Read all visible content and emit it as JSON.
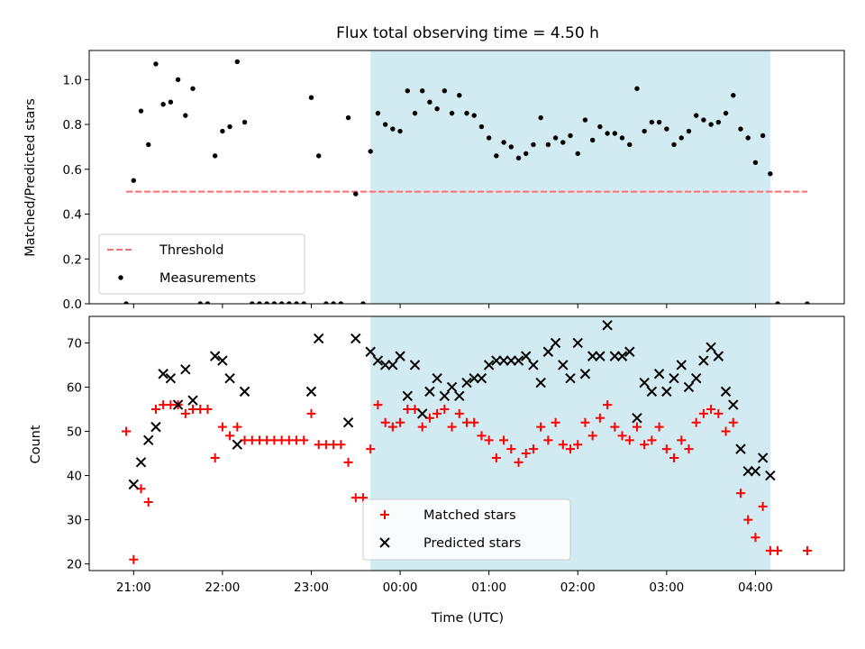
{
  "chart_data": [
    {
      "type": "scatter",
      "title": "Flux total observing time = 4.50 h",
      "xlabel": "",
      "ylabel": "Matched/Predicted stars",
      "xlim": [
        "20:30",
        "05:00"
      ],
      "ylim": [
        0,
        1.13
      ],
      "yticks": [
        "0.0",
        "0.2",
        "0.4",
        "0.6",
        "0.8",
        "1.0"
      ],
      "shaded_region": {
        "from": "23:40",
        "to": "04:10",
        "color": "#add8e6"
      },
      "grid": false,
      "legend_position": "lower-left",
      "series": [
        {
          "name": "Threshold",
          "kind": "dashed-line",
          "color": "#ff6e6e",
          "points": [
            [
              "20:55",
              0.5
            ],
            [
              "04:35",
              0.5
            ]
          ]
        },
        {
          "name": "Measurements",
          "kind": "dots",
          "color": "#000000",
          "points": [
            [
              "20:55",
              0.0
            ],
            [
              "21:00",
              0.55
            ],
            [
              "21:05",
              0.86
            ],
            [
              "21:10",
              0.71
            ],
            [
              "21:15",
              1.07
            ],
            [
              "21:20",
              0.89
            ],
            [
              "21:25",
              0.9
            ],
            [
              "21:30",
              1.0
            ],
            [
              "21:35",
              0.84
            ],
            [
              "21:40",
              0.96
            ],
            [
              "21:45",
              0.0
            ],
            [
              "21:50",
              0.0
            ],
            [
              "21:55",
              0.66
            ],
            [
              "22:00",
              0.77
            ],
            [
              "22:05",
              0.79
            ],
            [
              "22:10",
              1.08
            ],
            [
              "22:15",
              0.81
            ],
            [
              "22:20",
              0.0
            ],
            [
              "22:25",
              0.0
            ],
            [
              "22:30",
              0.0
            ],
            [
              "22:35",
              0.0
            ],
            [
              "22:40",
              0.0
            ],
            [
              "22:45",
              0.0
            ],
            [
              "22:50",
              0.0
            ],
            [
              "22:55",
              0.0
            ],
            [
              "23:00",
              0.92
            ],
            [
              "23:05",
              0.66
            ],
            [
              "23:10",
              0.0
            ],
            [
              "23:15",
              0.0
            ],
            [
              "23:20",
              0.0
            ],
            [
              "23:25",
              0.83
            ],
            [
              "23:30",
              0.49
            ],
            [
              "23:35",
              0.0
            ],
            [
              "23:40",
              0.68
            ],
            [
              "23:45",
              0.85
            ],
            [
              "23:50",
              0.8
            ],
            [
              "23:55",
              0.78
            ],
            [
              "00:00",
              0.77
            ],
            [
              "00:05",
              0.95
            ],
            [
              "00:10",
              0.85
            ],
            [
              "00:15",
              0.95
            ],
            [
              "00:20",
              0.9
            ],
            [
              "00:25",
              0.87
            ],
            [
              "00:30",
              0.95
            ],
            [
              "00:35",
              0.85
            ],
            [
              "00:40",
              0.93
            ],
            [
              "00:45",
              0.85
            ],
            [
              "00:50",
              0.84
            ],
            [
              "00:55",
              0.79
            ],
            [
              "01:00",
              0.74
            ],
            [
              "01:05",
              0.66
            ],
            [
              "01:10",
              0.72
            ],
            [
              "01:15",
              0.7
            ],
            [
              "01:20",
              0.65
            ],
            [
              "01:25",
              0.67
            ],
            [
              "01:30",
              0.71
            ],
            [
              "01:35",
              0.83
            ],
            [
              "01:40",
              0.71
            ],
            [
              "01:45",
              0.74
            ],
            [
              "01:50",
              0.72
            ],
            [
              "01:55",
              0.75
            ],
            [
              "02:00",
              0.67
            ],
            [
              "02:05",
              0.82
            ],
            [
              "02:10",
              0.73
            ],
            [
              "02:15",
              0.79
            ],
            [
              "02:20",
              0.76
            ],
            [
              "02:25",
              0.76
            ],
            [
              "02:30",
              0.74
            ],
            [
              "02:35",
              0.71
            ],
            [
              "02:40",
              0.96
            ],
            [
              "02:45",
              0.77
            ],
            [
              "02:50",
              0.81
            ],
            [
              "02:55",
              0.81
            ],
            [
              "03:00",
              0.78
            ],
            [
              "03:05",
              0.71
            ],
            [
              "03:10",
              0.74
            ],
            [
              "03:15",
              0.77
            ],
            [
              "03:20",
              0.84
            ],
            [
              "03:25",
              0.82
            ],
            [
              "03:30",
              0.8
            ],
            [
              "03:35",
              0.81
            ],
            [
              "03:40",
              0.85
            ],
            [
              "03:45",
              0.93
            ],
            [
              "03:50",
              0.78
            ],
            [
              "03:55",
              0.74
            ],
            [
              "04:00",
              0.63
            ],
            [
              "04:05",
              0.75
            ],
            [
              "04:10",
              0.58
            ],
            [
              "04:15",
              0.0
            ],
            [
              "04:35",
              0.0
            ]
          ]
        }
      ]
    },
    {
      "type": "scatter",
      "title": "",
      "xlabel": "Time (UTC)",
      "ylabel": "Count",
      "xlim": [
        "20:30",
        "05:00"
      ],
      "ylim": [
        18.5,
        76
      ],
      "xticks": [
        "21:00",
        "22:00",
        "23:00",
        "00:00",
        "01:00",
        "02:00",
        "03:00",
        "04:00"
      ],
      "yticks": [
        "20",
        "30",
        "40",
        "50",
        "60",
        "70"
      ],
      "shaded_region": {
        "from": "23:40",
        "to": "04:10",
        "color": "#add8e6"
      },
      "grid": false,
      "legend_position": "lower-center",
      "series": [
        {
          "name": "Matched stars",
          "kind": "plus",
          "color": "#ff0000",
          "points": [
            [
              "20:55",
              50
            ],
            [
              "21:00",
              21
            ],
            [
              "21:05",
              37
            ],
            [
              "21:10",
              34
            ],
            [
              "21:15",
              55
            ],
            [
              "21:20",
              56
            ],
            [
              "21:25",
              56
            ],
            [
              "21:30",
              56
            ],
            [
              "21:35",
              54
            ],
            [
              "21:40",
              55
            ],
            [
              "21:45",
              55
            ],
            [
              "21:50",
              55
            ],
            [
              "21:55",
              44
            ],
            [
              "22:00",
              51
            ],
            [
              "22:05",
              49
            ],
            [
              "22:10",
              51
            ],
            [
              "22:15",
              48
            ],
            [
              "22:20",
              48
            ],
            [
              "22:25",
              48
            ],
            [
              "22:30",
              48
            ],
            [
              "22:35",
              48
            ],
            [
              "22:40",
              48
            ],
            [
              "22:45",
              48
            ],
            [
              "22:50",
              48
            ],
            [
              "22:55",
              48
            ],
            [
              "23:00",
              54
            ],
            [
              "23:05",
              47
            ],
            [
              "23:10",
              47
            ],
            [
              "23:15",
              47
            ],
            [
              "23:20",
              47
            ],
            [
              "23:25",
              43
            ],
            [
              "23:30",
              35
            ],
            [
              "23:35",
              35
            ],
            [
              "23:40",
              46
            ],
            [
              "23:45",
              56
            ],
            [
              "23:50",
              52
            ],
            [
              "23:55",
              51
            ],
            [
              "00:00",
              52
            ],
            [
              "00:05",
              55
            ],
            [
              "00:10",
              55
            ],
            [
              "00:15",
              51
            ],
            [
              "00:20",
              53
            ],
            [
              "00:25",
              54
            ],
            [
              "00:30",
              55
            ],
            [
              "00:35",
              51
            ],
            [
              "00:40",
              54
            ],
            [
              "00:45",
              52
            ],
            [
              "00:50",
              52
            ],
            [
              "00:55",
              49
            ],
            [
              "01:00",
              48
            ],
            [
              "01:05",
              44
            ],
            [
              "01:10",
              48
            ],
            [
              "01:15",
              46
            ],
            [
              "01:20",
              43
            ],
            [
              "01:25",
              45
            ],
            [
              "01:30",
              46
            ],
            [
              "01:35",
              51
            ],
            [
              "01:40",
              48
            ],
            [
              "01:45",
              52
            ],
            [
              "01:50",
              47
            ],
            [
              "01:55",
              46
            ],
            [
              "02:00",
              47
            ],
            [
              "02:05",
              52
            ],
            [
              "02:10",
              49
            ],
            [
              "02:15",
              53
            ],
            [
              "02:20",
              56
            ],
            [
              "02:25",
              51
            ],
            [
              "02:30",
              49
            ],
            [
              "02:35",
              48
            ],
            [
              "02:40",
              51
            ],
            [
              "02:45",
              47
            ],
            [
              "02:50",
              48
            ],
            [
              "02:55",
              51
            ],
            [
              "03:00",
              46
            ],
            [
              "03:05",
              44
            ],
            [
              "03:10",
              48
            ],
            [
              "03:15",
              46
            ],
            [
              "03:20",
              52
            ],
            [
              "03:25",
              54
            ],
            [
              "03:30",
              55
            ],
            [
              "03:35",
              54
            ],
            [
              "03:40",
              50
            ],
            [
              "03:45",
              52
            ],
            [
              "03:50",
              36
            ],
            [
              "03:55",
              30
            ],
            [
              "04:00",
              26
            ],
            [
              "04:05",
              33
            ],
            [
              "04:10",
              23
            ],
            [
              "04:15",
              23
            ],
            [
              "04:35",
              23
            ]
          ]
        },
        {
          "name": "Predicted stars",
          "kind": "x",
          "color": "#000000",
          "points": [
            [
              "21:00",
              38
            ],
            [
              "21:05",
              43
            ],
            [
              "21:10",
              48
            ],
            [
              "21:15",
              51
            ],
            [
              "21:20",
              63
            ],
            [
              "21:25",
              62
            ],
            [
              "21:30",
              56
            ],
            [
              "21:35",
              64
            ],
            [
              "21:40",
              57
            ],
            [
              "21:55",
              67
            ],
            [
              "22:00",
              66
            ],
            [
              "22:05",
              62
            ],
            [
              "22:10",
              47
            ],
            [
              "22:15",
              59
            ],
            [
              "23:00",
              59
            ],
            [
              "23:05",
              71
            ],
            [
              "23:25",
              52
            ],
            [
              "23:30",
              71
            ],
            [
              "23:40",
              68
            ],
            [
              "23:45",
              66
            ],
            [
              "23:50",
              65
            ],
            [
              "23:55",
              65
            ],
            [
              "00:00",
              67
            ],
            [
              "00:05",
              58
            ],
            [
              "00:10",
              65
            ],
            [
              "00:15",
              54
            ],
            [
              "00:20",
              59
            ],
            [
              "00:25",
              62
            ],
            [
              "00:30",
              58
            ],
            [
              "00:35",
              60
            ],
            [
              "00:40",
              58
            ],
            [
              "00:45",
              61
            ],
            [
              "00:50",
              62
            ],
            [
              "00:55",
              62
            ],
            [
              "01:00",
              65
            ],
            [
              "01:05",
              66
            ],
            [
              "01:10",
              66
            ],
            [
              "01:15",
              66
            ],
            [
              "01:20",
              66
            ],
            [
              "01:25",
              67
            ],
            [
              "01:30",
              65
            ],
            [
              "01:35",
              61
            ],
            [
              "01:40",
              68
            ],
            [
              "01:45",
              70
            ],
            [
              "01:50",
              65
            ],
            [
              "01:55",
              62
            ],
            [
              "02:00",
              70
            ],
            [
              "02:05",
              63
            ],
            [
              "02:10",
              67
            ],
            [
              "02:15",
              67
            ],
            [
              "02:20",
              74
            ],
            [
              "02:25",
              67
            ],
            [
              "02:30",
              67
            ],
            [
              "02:35",
              68
            ],
            [
              "02:40",
              53
            ],
            [
              "02:45",
              61
            ],
            [
              "02:50",
              59
            ],
            [
              "02:55",
              63
            ],
            [
              "03:00",
              59
            ],
            [
              "03:05",
              62
            ],
            [
              "03:10",
              65
            ],
            [
              "03:15",
              60
            ],
            [
              "03:20",
              62
            ],
            [
              "03:25",
              66
            ],
            [
              "03:30",
              69
            ],
            [
              "03:35",
              67
            ],
            [
              "03:40",
              59
            ],
            [
              "03:45",
              56
            ],
            [
              "03:50",
              46
            ],
            [
              "03:55",
              41
            ],
            [
              "04:00",
              41
            ],
            [
              "04:05",
              44
            ],
            [
              "04:10",
              40
            ]
          ]
        }
      ]
    }
  ]
}
